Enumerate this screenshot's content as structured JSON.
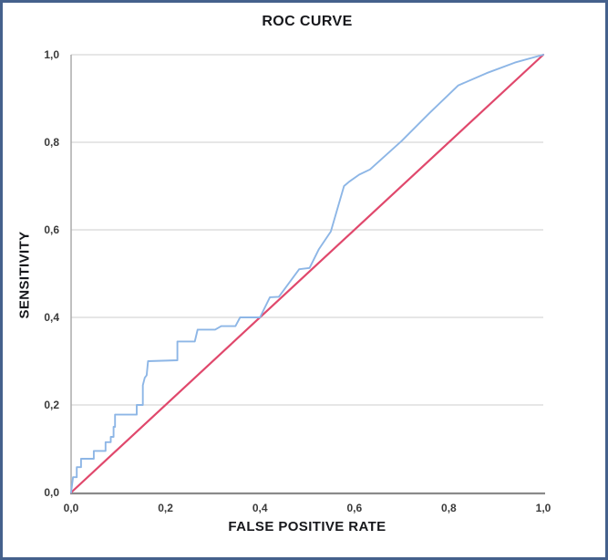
{
  "chart_data": {
    "type": "line",
    "title": "ROC CURVE",
    "xlabel": "FALSE POSITIVE RATE",
    "ylabel": "SENSITIVITY",
    "xlim": [
      0,
      1
    ],
    "ylim": [
      0,
      1
    ],
    "grid": "horizontal-only",
    "legend": "none",
    "x_ticks": {
      "values": [
        0,
        0.2,
        0.4,
        0.6,
        0.8,
        1.0
      ],
      "labels": [
        "0,0",
        "0,2",
        "0,4",
        "0,6",
        "0,8",
        "1,0"
      ]
    },
    "y_ticks": {
      "values": [
        0,
        0.2,
        0.4,
        0.6,
        0.8,
        1.0
      ],
      "labels": [
        "0,0",
        "0,2",
        "0,4",
        "0,6",
        "0,8",
        "1,0"
      ]
    },
    "series": [
      {
        "name": "reference-diagonal",
        "color": "#e0486c",
        "width": 2.2,
        "points": [
          [
            0,
            0
          ],
          [
            1,
            1
          ]
        ]
      },
      {
        "name": "roc-curve",
        "color": "#8db6e6",
        "width": 1.9,
        "points": [
          [
            0.0,
            0.0
          ],
          [
            0.004,
            0.035
          ],
          [
            0.012,
            0.035
          ],
          [
            0.012,
            0.058
          ],
          [
            0.021,
            0.058
          ],
          [
            0.021,
            0.077
          ],
          [
            0.048,
            0.077
          ],
          [
            0.048,
            0.095
          ],
          [
            0.073,
            0.095
          ],
          [
            0.073,
            0.115
          ],
          [
            0.084,
            0.115
          ],
          [
            0.084,
            0.127
          ],
          [
            0.09,
            0.127
          ],
          [
            0.09,
            0.15
          ],
          [
            0.093,
            0.15
          ],
          [
            0.093,
            0.178
          ],
          [
            0.139,
            0.178
          ],
          [
            0.139,
            0.2
          ],
          [
            0.152,
            0.2
          ],
          [
            0.152,
            0.245
          ],
          [
            0.156,
            0.262
          ],
          [
            0.16,
            0.268
          ],
          [
            0.163,
            0.3
          ],
          [
            0.225,
            0.302
          ],
          [
            0.225,
            0.345
          ],
          [
            0.262,
            0.345
          ],
          [
            0.268,
            0.372
          ],
          [
            0.305,
            0.372
          ],
          [
            0.318,
            0.38
          ],
          [
            0.348,
            0.38
          ],
          [
            0.358,
            0.4
          ],
          [
            0.4,
            0.4
          ],
          [
            0.421,
            0.446
          ],
          [
            0.44,
            0.447
          ],
          [
            0.483,
            0.51
          ],
          [
            0.505,
            0.513
          ],
          [
            0.525,
            0.556
          ],
          [
            0.55,
            0.596
          ],
          [
            0.578,
            0.7
          ],
          [
            0.589,
            0.71
          ],
          [
            0.61,
            0.726
          ],
          [
            0.633,
            0.738
          ],
          [
            0.7,
            0.803
          ],
          [
            0.76,
            0.868
          ],
          [
            0.82,
            0.93
          ],
          [
            0.88,
            0.958
          ],
          [
            0.94,
            0.982
          ],
          [
            1.0,
            1.0
          ]
        ]
      }
    ],
    "colors": {
      "frame_border": "#45618c",
      "background": "#ffffff",
      "gridline": "#d8d8d8",
      "y_axis_line": "#a6a6a6",
      "x_axis_line": "#8a8a8a",
      "title_text": "#17181c",
      "tick_text": "#3a3a3a"
    }
  }
}
